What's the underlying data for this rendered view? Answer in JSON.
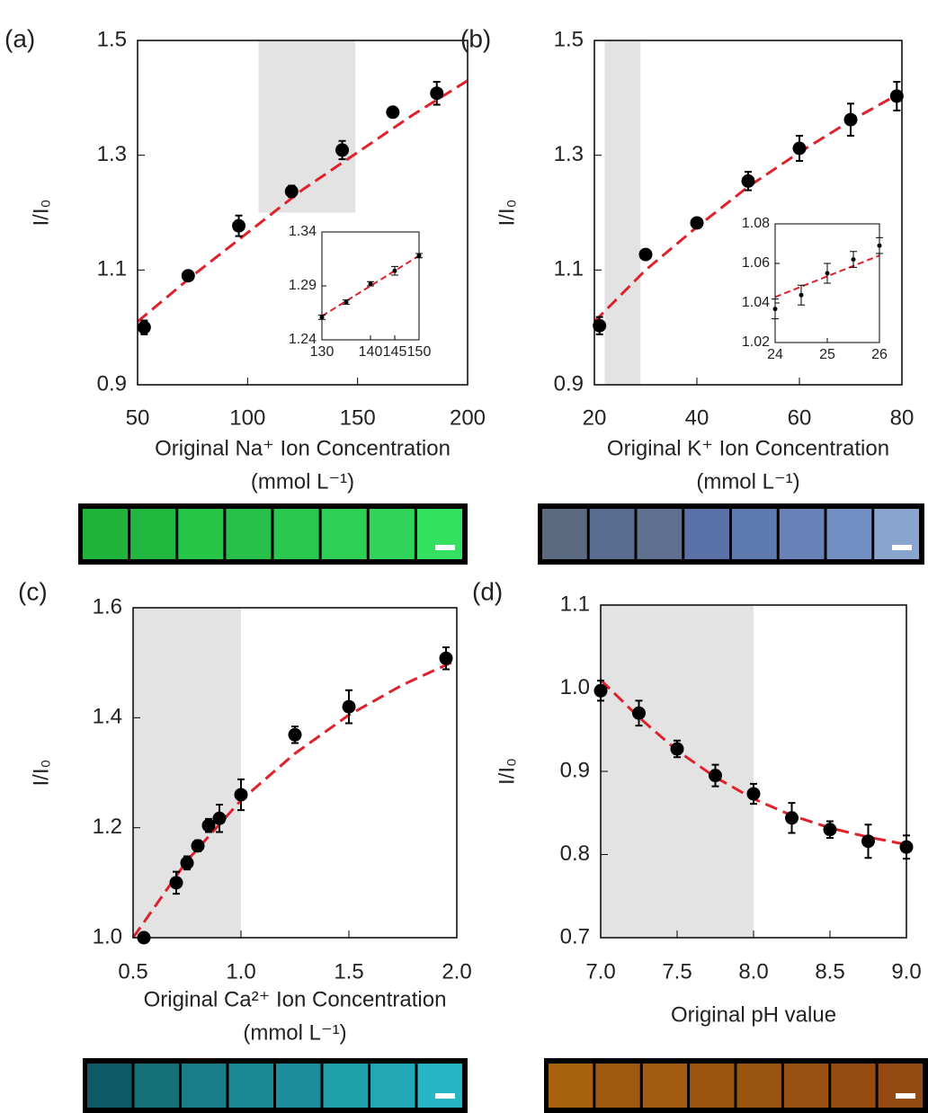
{
  "chart_data": [
    {
      "type": "scatter",
      "label": "(a)",
      "ylabel": "I/I₀",
      "xlabel": [
        "Original Na⁺ Ion Concentration",
        "(mmol L⁻¹)"
      ],
      "xlim": [
        50,
        200
      ],
      "xticks": [
        50,
        100,
        150,
        200
      ],
      "ylim": [
        0.9,
        1.5
      ],
      "yticks": [
        0.9,
        1.1,
        1.3,
        1.5
      ],
      "shaded_x": [
        105,
        149
      ],
      "shaded_y": [
        1.2,
        1.5
      ],
      "series": [
        {
          "style": "dashed-line",
          "color": "#e0202a",
          "x": [
            50,
            75,
            100,
            125,
            150,
            175,
            200
          ],
          "values": [
            1.01,
            1.09,
            1.165,
            1.24,
            1.305,
            1.37,
            1.43
          ]
        },
        {
          "style": "points",
          "color": "#000000",
          "x": [
            53,
            73,
            96,
            120,
            143,
            166,
            186
          ],
          "values": [
            1.0,
            1.09,
            1.177,
            1.237,
            1.309,
            1.375,
            1.408
          ],
          "errors": [
            0.012,
            0.008,
            0.018,
            0.01,
            0.016,
            0.008,
            0.02
          ]
        }
      ],
      "inset": {
        "xlim": [
          130,
          150
        ],
        "xticks": [
          130,
          140,
          145,
          150
        ],
        "ylim": [
          1.24,
          1.34
        ],
        "yticks": [
          1.24,
          1.29,
          1.34
        ],
        "series": [
          {
            "style": "dashed-line",
            "color": "#e0202a",
            "x": [
              130,
              140,
              150
            ],
            "values": [
              1.262,
              1.29,
              1.318
            ]
          },
          {
            "style": "points",
            "color": "#000000",
            "x": [
              130,
              135,
              140,
              145,
              150
            ],
            "values": [
              1.261,
              1.275,
              1.292,
              1.304,
              1.318
            ],
            "errors": [
              0.002,
              0.002,
              0.002,
              0.004,
              0.002
            ]
          }
        ]
      }
    },
    {
      "type": "scatter",
      "label": "(b)",
      "ylabel": "I/I₀",
      "xlabel": [
        "Original K⁺ Ion Concentration",
        "(mmol L⁻¹)"
      ],
      "xlim": [
        20,
        80
      ],
      "xticks": [
        20,
        40,
        60,
        80
      ],
      "ylim": [
        0.9,
        1.5
      ],
      "yticks": [
        0.9,
        1.1,
        1.3,
        1.5
      ],
      "shaded_x": [
        22,
        29
      ],
      "series": [
        {
          "style": "dashed-line",
          "color": "#e0202a",
          "x": [
            20,
            30,
            40,
            50,
            60,
            70,
            80
          ],
          "values": [
            1.01,
            1.1,
            1.175,
            1.245,
            1.305,
            1.36,
            1.41
          ]
        },
        {
          "style": "points",
          "color": "#000000",
          "x": [
            21,
            30,
            40,
            50,
            60,
            70,
            79
          ],
          "values": [
            1.003,
            1.127,
            1.182,
            1.255,
            1.312,
            1.362,
            1.403
          ],
          "errors": [
            0.015,
            0.006,
            0.008,
            0.016,
            0.022,
            0.028,
            0.025
          ]
        }
      ],
      "inset": {
        "xlim": [
          24,
          26
        ],
        "xticks": [
          24,
          25,
          26
        ],
        "ylim": [
          1.02,
          1.08
        ],
        "yticks": [
          1.02,
          1.04,
          1.06,
          1.08
        ],
        "series": [
          {
            "style": "dashed-line",
            "color": "#e0202a",
            "x": [
              24,
              26
            ],
            "values": [
              1.043,
              1.064
            ]
          },
          {
            "style": "points",
            "color": "#000000",
            "x": [
              24,
              24.5,
              25,
              25.5,
              26
            ],
            "values": [
              1.037,
              1.044,
              1.055,
              1.062,
              1.069
            ],
            "errors": [
              0.005,
              0.005,
              0.005,
              0.004,
              0.004
            ]
          }
        ]
      }
    },
    {
      "type": "scatter",
      "label": "(c)",
      "ylabel": "I/I₀",
      "xlabel": [
        "Original Ca²⁺ Ion Concentration",
        "(mmol L⁻¹)"
      ],
      "xlim": [
        0.5,
        2.0
      ],
      "xticks": [
        0.5,
        {
          "value": 1,
          "label": "1.0"
        },
        1.5,
        {
          "value": 2,
          "label": "2.0"
        }
      ],
      "ylim": [
        1.0,
        1.6
      ],
      "yticks": [
        {
          "value": 1,
          "label": "1.0"
        },
        1.2,
        1.4,
        1.6
      ],
      "shaded_x": [
        0.5,
        1.0
      ],
      "series": [
        {
          "style": "dashed-line",
          "color": "#e0202a",
          "x": [
            0.5,
            0.75,
            1.0,
            1.25,
            1.5,
            1.75,
            2.0
          ],
          "values": [
            1.0,
            1.14,
            1.25,
            1.335,
            1.405,
            1.46,
            1.505
          ]
        },
        {
          "style": "points",
          "color": "#000000",
          "x": [
            0.55,
            0.7,
            0.75,
            0.8,
            0.85,
            0.9,
            1.0,
            1.25,
            1.5,
            1.95
          ],
          "values": [
            1.0,
            1.1,
            1.136,
            1.167,
            1.204,
            1.217,
            1.26,
            1.369,
            1.42,
            1.508
          ],
          "errors": [
            0.005,
            0.02,
            0.012,
            0.01,
            0.012,
            0.025,
            0.028,
            0.015,
            0.03,
            0.02
          ]
        }
      ]
    },
    {
      "type": "scatter",
      "label": "(d)",
      "ylabel": "I/I₀",
      "xlabel": [
        "Original pH value"
      ],
      "xlim": [
        7.0,
        9.0
      ],
      "xticks": [
        {
          "value": 7,
          "label": "7.0"
        },
        7.5,
        {
          "value": 8,
          "label": "8.0"
        },
        8.5,
        {
          "value": 9,
          "label": "9.0"
        }
      ],
      "ylim": [
        0.7,
        1.1
      ],
      "yticks": [
        0.7,
        0.8,
        0.9,
        {
          "value": 1,
          "label": "1.0"
        },
        1.1
      ],
      "shaded_x": [
        7.0,
        8.0
      ],
      "series": [
        {
          "style": "dashed-line",
          "color": "#e0202a",
          "x": [
            7,
            7.25,
            7.5,
            7.75,
            8,
            8.25,
            8.5,
            8.75,
            9
          ],
          "values": [
            1.01,
            0.965,
            0.925,
            0.893,
            0.867,
            0.847,
            0.832,
            0.821,
            0.812
          ]
        },
        {
          "style": "points",
          "color": "#000000",
          "x": [
            7,
            7.25,
            7.5,
            7.75,
            8,
            8.25,
            8.5,
            8.75,
            9
          ],
          "values": [
            0.997,
            0.97,
            0.927,
            0.895,
            0.873,
            0.844,
            0.83,
            0.816,
            0.809
          ],
          "errors": [
            0.012,
            0.015,
            0.01,
            0.013,
            0.012,
            0.018,
            0.01,
            0.02,
            0.014
          ]
        }
      ]
    }
  ]
}
